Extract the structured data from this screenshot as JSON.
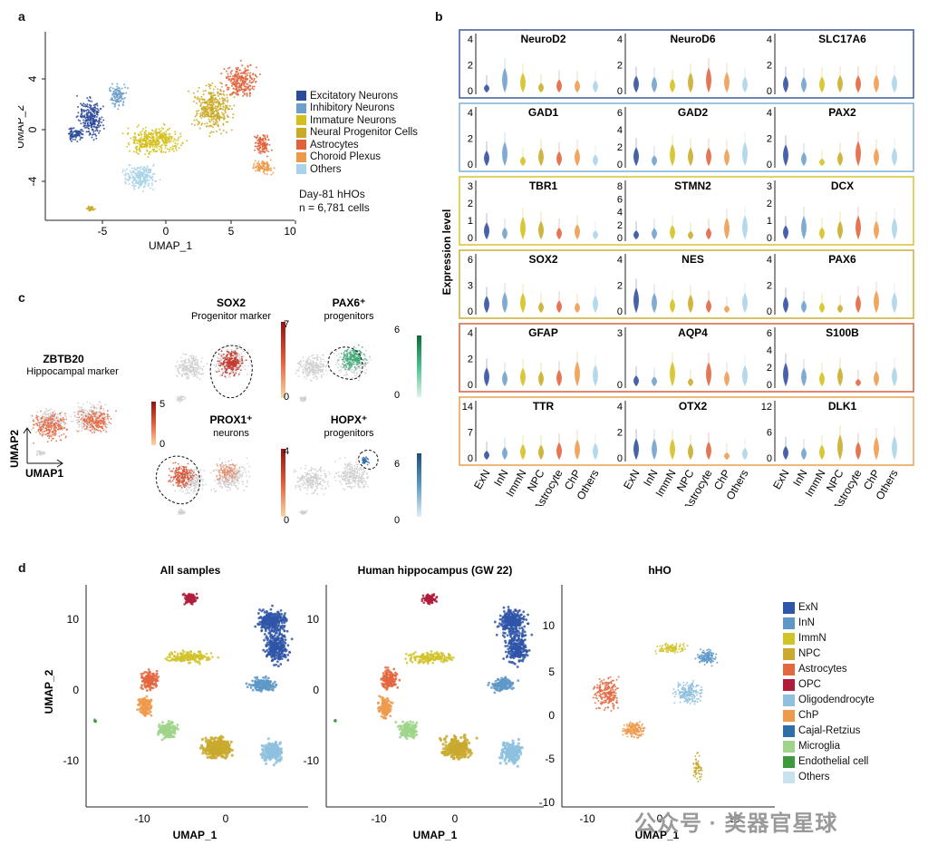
{
  "panel_labels": {
    "a": "a",
    "b": "b",
    "c": "c",
    "d": "d"
  },
  "panel_a": {
    "xlabel": "UMAP_1",
    "ylabel": "UMAP_2",
    "xticks": [
      "-5",
      "0",
      "5",
      "10"
    ],
    "yticks": [
      "4",
      "0",
      "-4"
    ],
    "legend": [
      {
        "label": "Excitatory Neurons",
        "color": "#2b4a9a"
      },
      {
        "label": "Inhibitory Neurons",
        "color": "#6d9fca"
      },
      {
        "label": "Immature Neurons",
        "color": "#d4c01a"
      },
      {
        "label": "Neural Progenitor Cells",
        "color": "#c9a926"
      },
      {
        "label": "Astrocytes",
        "color": "#e0623a"
      },
      {
        "label": "Choroid Plexus",
        "color": "#ec9a4a"
      },
      {
        "label": "Others",
        "color": "#a9d3e8"
      }
    ],
    "note1": "Day-81 hHOs",
    "note2": "n = 6,781 cells"
  },
  "panel_b": {
    "ylabel": "Expression level",
    "categories": [
      "ExN",
      "InN",
      "ImmN",
      "NPC",
      "Astrocyte",
      "ChP",
      "Others"
    ],
    "rows": [
      {
        "frame": "#3d5a9e",
        "genes": [
          {
            "name": "NeuroD2",
            "yticks": [
              "4",
              "2",
              "0"
            ]
          },
          {
            "name": "NeuroD6",
            "yticks": [
              "4",
              "2",
              "0"
            ]
          },
          {
            "name": "SLC17A6",
            "yticks": [
              "4",
              "2",
              "0"
            ]
          }
        ]
      },
      {
        "frame": "#7fb0d6",
        "genes": [
          {
            "name": "GAD1",
            "yticks": [
              "4",
              "2",
              "0"
            ]
          },
          {
            "name": "GAD2",
            "yticks": [
              "6",
              "4",
              "2",
              "0"
            ]
          },
          {
            "name": "PAX2",
            "yticks": [
              "4",
              "2",
              "0"
            ]
          }
        ]
      },
      {
        "frame": "#d8c32a",
        "genes": [
          {
            "name": "TBR1",
            "yticks": [
              "3",
              "2",
              "1",
              "0"
            ]
          },
          {
            "name": "STMN2",
            "yticks": [
              "8",
              "6",
              "4",
              "2",
              "0"
            ]
          },
          {
            "name": "DCX",
            "yticks": [
              "3",
              "2",
              "1",
              "0"
            ]
          }
        ]
      },
      {
        "frame": "#c9b13a",
        "genes": [
          {
            "name": "SOX2",
            "yticks": [
              "6",
              "3",
              "0"
            ]
          },
          {
            "name": "NES",
            "yticks": [
              "4",
              "2",
              "0"
            ]
          },
          {
            "name": "PAX6",
            "yticks": [
              "4",
              "2",
              "0"
            ]
          }
        ]
      },
      {
        "frame": "#d9603a",
        "genes": [
          {
            "name": "GFAP",
            "yticks": [
              "4",
              "2",
              "0"
            ]
          },
          {
            "name": "AQP4",
            "yticks": [
              "3",
              "0"
            ]
          },
          {
            "name": "S100B",
            "yticks": [
              "6",
              "4",
              "2",
              "0"
            ]
          }
        ]
      },
      {
        "frame": "#e8a04a",
        "genes": [
          {
            "name": "TTR",
            "yticks": [
              "14",
              "7",
              "0"
            ]
          },
          {
            "name": "OTX2",
            "yticks": [
              "4",
              "2",
              "0"
            ]
          },
          {
            "name": "DLK1",
            "yticks": [
              "12",
              "6",
              "0"
            ]
          }
        ]
      }
    ]
  },
  "panel_c": {
    "zbtb20_title": "ZBTB20",
    "zbtb20_sub": "Hippocampal marker",
    "zbtb20_max": "5",
    "zbtb20_min": "0",
    "sox2_title": "SOX2",
    "sox2_sub": "Progenitor marker",
    "sox2_max": "7",
    "sox2_min": "0",
    "pax6_title": "PAX6⁺",
    "pax6_sub": "progenitors",
    "pax6_max": "6",
    "pax6_min": "0",
    "prox1_title": "PROX1⁺",
    "prox1_sub": "neurons",
    "prox1_max": "4",
    "prox1_min": "0",
    "hopx_title": "HOPX⁺",
    "hopx_sub": "progenitors",
    "hopx_max": "6",
    "hopx_min": "0",
    "axis_y": "UMAP2",
    "axis_x": "UMAP1"
  },
  "panel_d": {
    "titles": [
      "All samples",
      "Human hippocampus (GW 22)",
      "hHO"
    ],
    "xlabel": "UMAP_1",
    "ylabel": "UMAP_2",
    "xticks_left": [
      "-10",
      "0"
    ],
    "yticks_left": [
      "10",
      "0",
      "-10"
    ],
    "xticks_right": [
      "-10",
      "0",
      "10"
    ],
    "yticks_right": [
      "10",
      "5",
      "0",
      "-5",
      "-10"
    ],
    "legend": [
      {
        "label": "ExN",
        "color": "#2f55a8"
      },
      {
        "label": "InN",
        "color": "#5e98c8"
      },
      {
        "label": "ImmN",
        "color": "#d1c32a"
      },
      {
        "label": "NPC",
        "color": "#c9a92e"
      },
      {
        "label": "Astrocytes",
        "color": "#e3673f"
      },
      {
        "label": "OPC",
        "color": "#b01c3a"
      },
      {
        "label": "Oligodendrocyte",
        "color": "#8ec1de"
      },
      {
        "label": "ChP",
        "color": "#ee9a4e"
      },
      {
        "label": "Cajal-Retzius",
        "color": "#2f6fa8"
      },
      {
        "label": "Microglia",
        "color": "#9fd58a"
      },
      {
        "label": "Endothelial cell",
        "color": "#3c9a3c"
      },
      {
        "label": "Others",
        "color": "#c8e2ef"
      }
    ]
  },
  "watermark": "公众号 · 类器官星球"
}
